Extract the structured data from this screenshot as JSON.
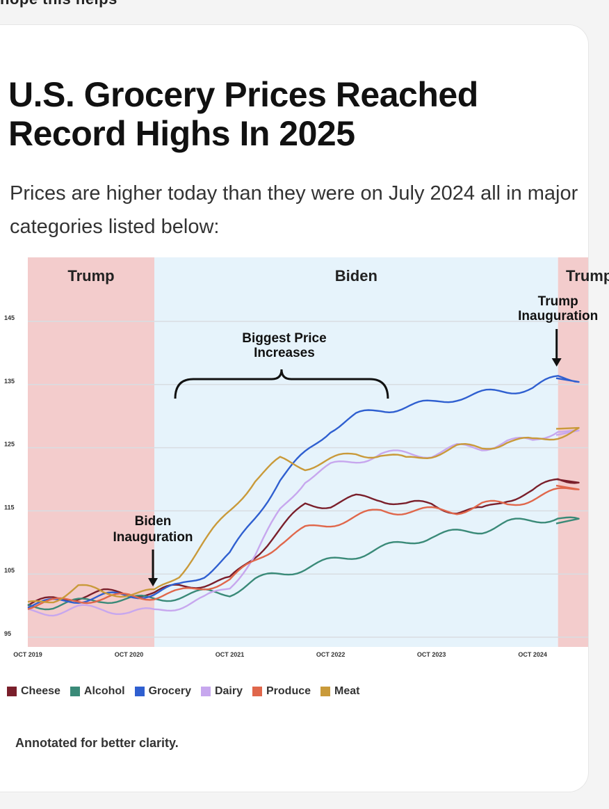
{
  "header": {
    "cutoff_text": "hope this helps"
  },
  "card": {
    "title": "U.S. Grocery Prices Reached Record Highs In 2025",
    "subtitle": "Prices are higher today than they were on July 2024 all in major categories listed below:",
    "footnote": "Annotated for better clarity."
  },
  "colors": {
    "trump_band": "#f3cccc",
    "biden_band": "#e6f3fb",
    "gridline": "#d8dde2"
  },
  "chart_data": {
    "type": "line",
    "title": "",
    "xlabel": "",
    "ylabel": "",
    "ylim": [
      95,
      145
    ],
    "yticks": [
      95,
      105,
      115,
      125,
      135,
      145
    ],
    "xticks": [
      "OCT 2019",
      "OCT 2020",
      "OCT 2021",
      "OCT 2022",
      "OCT 2023",
      "OCT 2024"
    ],
    "grid": true,
    "legend_position": "bottom",
    "periods": [
      {
        "label": "Trump",
        "start": "2019-10",
        "end": "2021-01"
      },
      {
        "label": "Biden",
        "start": "2021-01",
        "end": "2025-01"
      },
      {
        "label": "Trump",
        "start": "2025-01",
        "end": "2025-04"
      }
    ],
    "annotations": [
      {
        "text": "Biden Inauguration",
        "x": "2021-01"
      },
      {
        "text": "Trump Inauguration",
        "x": "2025-01"
      },
      {
        "text": "Biggest Price Increases",
        "x_start": "2021-06",
        "x_end": "2023-04"
      }
    ],
    "x": [
      "2019-10",
      "2020-01",
      "2020-04",
      "2020-07",
      "2020-10",
      "2021-01",
      "2021-04",
      "2021-07",
      "2021-10",
      "2022-01",
      "2022-04",
      "2022-07",
      "2022-10",
      "2023-01",
      "2023-04",
      "2023-07",
      "2023-10",
      "2024-01",
      "2024-04",
      "2024-07",
      "2024-10",
      "2025-01",
      "2025-04"
    ],
    "series": [
      {
        "name": "Cheese",
        "color": "#7a1f2b",
        "values": [
          100,
          101,
          101.5,
          102,
          102,
          102,
          103,
          103.5,
          104,
          108,
          112,
          116,
          116,
          117,
          117,
          116,
          116,
          115,
          115,
          117,
          118,
          120,
          120
        ]
      },
      {
        "name": "Alcohol",
        "color": "#3a8a78",
        "values": [
          100,
          100,
          100.5,
          101,
          101,
          101,
          101.5,
          102,
          102,
          104,
          105,
          106,
          107,
          108,
          109,
          110,
          111,
          111.5,
          112,
          113,
          113.5,
          114,
          113
        ]
      },
      {
        "name": "Grocery",
        "color": "#2f5fd0",
        "values": [
          100,
          100.5,
          101,
          101.5,
          101.5,
          102,
          103,
          105,
          108,
          114,
          120,
          124,
          128,
          130,
          131,
          131.5,
          132,
          133,
          133.5,
          134,
          134.5,
          136,
          136
        ]
      },
      {
        "name": "Dairy",
        "color": "#c7a7ee",
        "values": [
          99,
          99,
          99.5,
          99.5,
          99,
          99,
          100,
          101,
          103,
          108,
          115,
          120,
          122,
          123,
          124,
          124,
          124,
          125,
          125,
          126,
          126,
          128,
          127
        ]
      },
      {
        "name": "Produce",
        "color": "#e0674b",
        "values": [
          100,
          100.5,
          101,
          101,
          101.5,
          101.5,
          102,
          103,
          104,
          107,
          110,
          112,
          113,
          114,
          115,
          115,
          115,
          115,
          116,
          116,
          117,
          118,
          119
        ]
      },
      {
        "name": "Meat",
        "color": "#c99a3a",
        "values": [
          100,
          101,
          103,
          102,
          102,
          102,
          105,
          110,
          115,
          120,
          123,
          122,
          123,
          124,
          124,
          123,
          124,
          125,
          125,
          126,
          126,
          127,
          128
        ]
      }
    ]
  }
}
